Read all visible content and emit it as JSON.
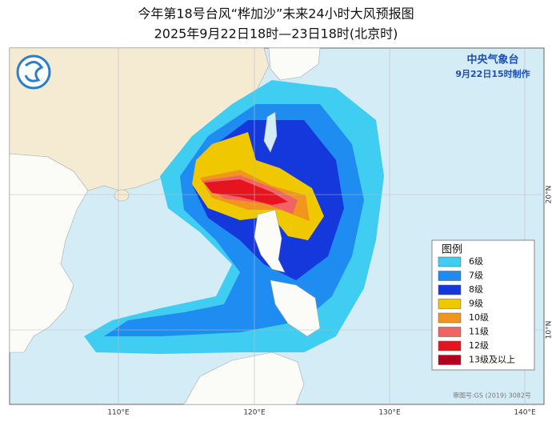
{
  "header": {
    "title": "今年第18号台风“桦加沙”未来24小时大风预报图",
    "subtitle": "2025年9月22日18时—23日18时(北京时)"
  },
  "map": {
    "agency": "中央气象台",
    "issued": "9月22日15时制作",
    "lon_labels": [
      "110°E",
      "120°E",
      "130°E",
      "140°E"
    ],
    "lat_labels": [
      "20°N",
      "10°N"
    ],
    "approval": "审图号:GS (2019) 3082号"
  },
  "legend": {
    "title": "图例",
    "items": [
      {
        "label": "6级",
        "color": "#3fcdf2"
      },
      {
        "label": "7级",
        "color": "#1e8cf0"
      },
      {
        "label": "8级",
        "color": "#1438dc"
      },
      {
        "label": "9级",
        "color": "#f0c800"
      },
      {
        "label": "10级",
        "color": "#f0961e"
      },
      {
        "label": "11级",
        "color": "#f06464"
      },
      {
        "label": "12级",
        "color": "#e6141e"
      },
      {
        "label": "13级及以上",
        "color": "#b4001e"
      }
    ]
  }
}
